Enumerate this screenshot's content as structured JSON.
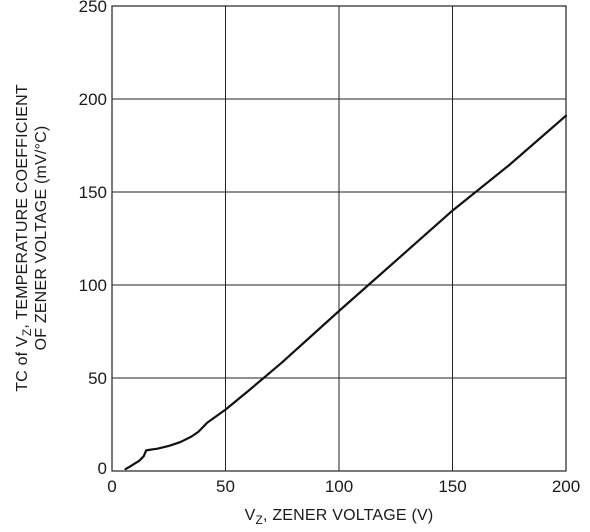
{
  "chart_data": {
    "type": "line",
    "title": "",
    "xlabel": {
      "prefix": "V",
      "sub": "Z",
      "rest": ", ZENER VOLTAGE (V)"
    },
    "ylabel": {
      "line1_prefix": "TC of V",
      "line1_sub": "Z",
      "line1_rest": ", TEMPERATURE COEFFICIENT",
      "line2": "OF ZENER VOLTAGE (mV/°C)"
    },
    "xlim": [
      0,
      200
    ],
    "ylim": [
      0,
      250
    ],
    "xticks": [
      0,
      50,
      100,
      150,
      200
    ],
    "yticks": [
      0,
      50,
      100,
      150,
      200,
      250
    ],
    "xtick_labels": [
      "0",
      "50",
      "100",
      "150",
      "200"
    ],
    "ytick_labels": [
      "0",
      "50",
      "100",
      "150",
      "200",
      "250"
    ],
    "grid": true,
    "series": [
      {
        "color": "#111111",
        "x": [
          6,
          8,
          10,
          12,
          14,
          15,
          16,
          20,
          25,
          30,
          35,
          38,
          42,
          50,
          60,
          75,
          100,
          125,
          150,
          175,
          200
        ],
        "y": [
          1,
          2.5,
          4,
          5.5,
          8,
          11,
          11.3,
          12,
          13.5,
          15.5,
          18.5,
          21,
          26,
          33,
          43,
          58.5,
          86,
          113,
          140,
          164.5,
          191
        ]
      }
    ]
  }
}
